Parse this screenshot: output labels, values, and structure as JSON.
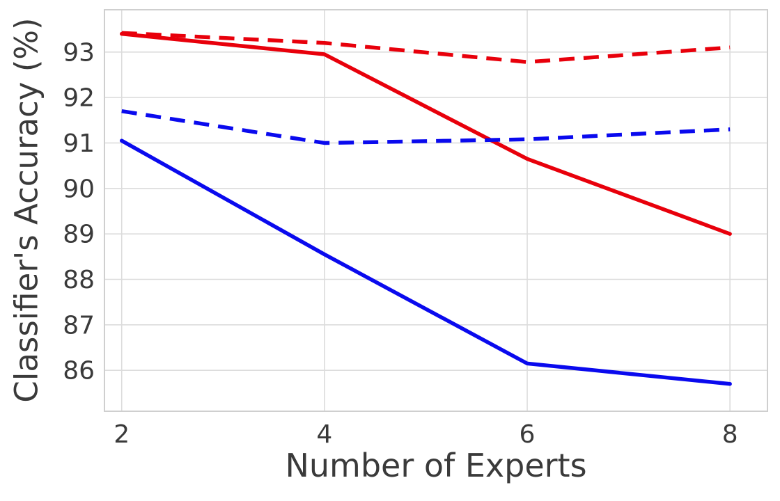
{
  "chart_data": {
    "type": "line",
    "x": [
      2,
      4,
      6,
      8
    ],
    "series": [
      {
        "name": "blue-solid",
        "color": "#0a0aee",
        "dash": false,
        "values": [
          91.05,
          88.55,
          86.15,
          85.7
        ]
      },
      {
        "name": "red-solid",
        "color": "#e8000b",
        "dash": false,
        "values": [
          93.4,
          92.95,
          90.65,
          89.0
        ]
      },
      {
        "name": "blue-dashed",
        "color": "#0a0aee",
        "dash": true,
        "values": [
          91.7,
          91.0,
          91.08,
          91.3
        ]
      },
      {
        "name": "red-dashed",
        "color": "#e8000b",
        "dash": true,
        "values": [
          93.42,
          93.2,
          92.78,
          93.1
        ]
      }
    ],
    "title": "",
    "xlabel": "Number of Experts",
    "ylabel": "Classifier's Accuracy (%)",
    "xticks": [
      2,
      4,
      6,
      8
    ],
    "yticks": [
      86,
      87,
      88,
      89,
      90,
      91,
      92,
      93
    ],
    "xlim": [
      1.83,
      8.37
    ],
    "ylim": [
      85.1,
      93.93
    ],
    "grid": true,
    "legend": "none"
  },
  "style": {
    "grid_color": "#dcdcdc",
    "border_color": "#cfcfcf",
    "text_color": "#3a3a3a",
    "tick_font_size": 36,
    "line_width": 5.5
  }
}
